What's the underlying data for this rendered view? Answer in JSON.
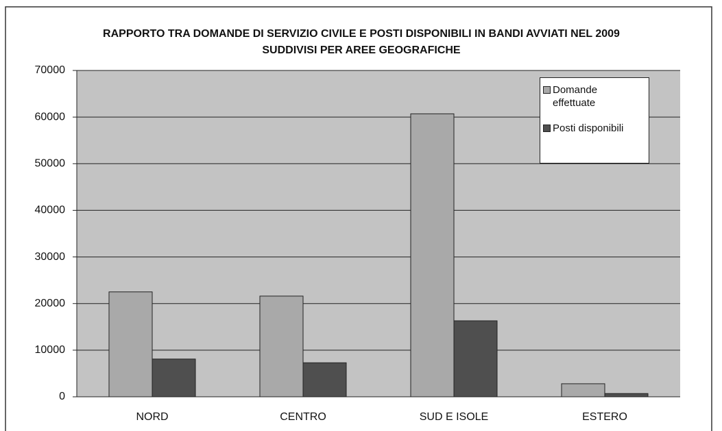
{
  "chart_data": {
    "type": "bar",
    "title": "RAPPORTO TRA DOMANDE DI SERVIZIO CIVILE E POSTI DISPONIBILI IN BANDI AVVIATI NEL 2009 SUDDIVISI PER AREE GEOGRAFICHE",
    "categories": [
      "NORD",
      "CENTRO",
      "SUD E ISOLE",
      "ESTERO"
    ],
    "series": [
      {
        "name": "Domande effettuate",
        "color": "#a9a9a9",
        "values": [
          22500,
          21600,
          60700,
          2800
        ]
      },
      {
        "name": "Posti disponibili",
        "color": "#4f4f4f",
        "values": [
          8100,
          7300,
          16300,
          700
        ]
      }
    ],
    "ylim": [
      0,
      70000
    ],
    "yticks": [
      0,
      10000,
      20000,
      30000,
      40000,
      50000,
      60000,
      70000
    ],
    "grid": true,
    "legend": "top-right"
  }
}
